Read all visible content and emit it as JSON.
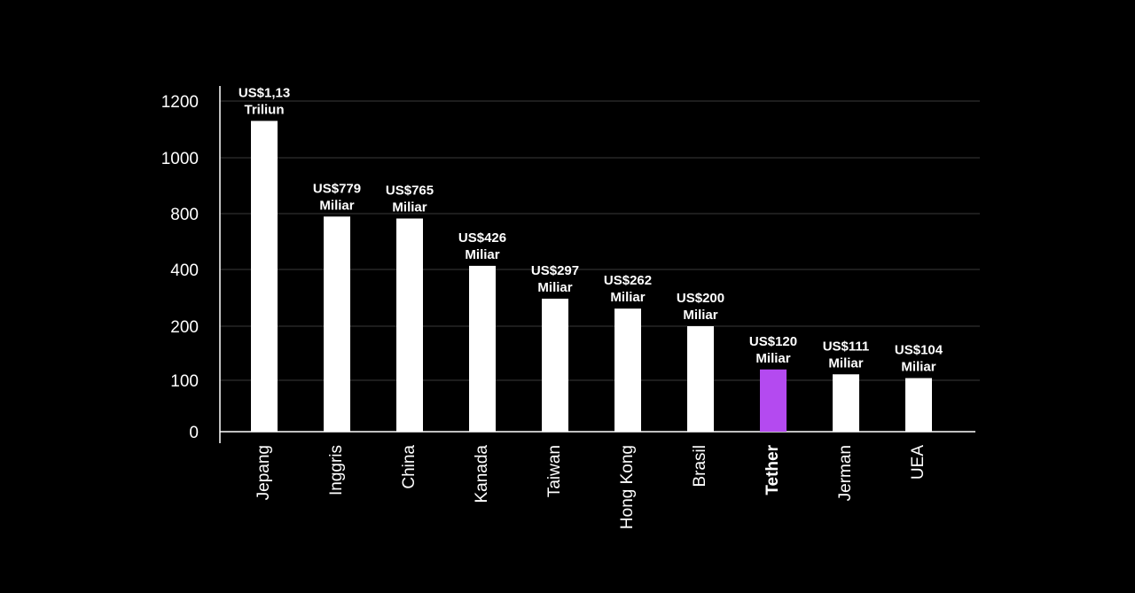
{
  "chart_data": {
    "type": "bar",
    "categories": [
      "Jepang",
      "Inggris",
      "China",
      "Kanada",
      "Taiwan",
      "Hong Kong",
      "Brasil",
      "Tether",
      "Jerman",
      "UEA"
    ],
    "values": [
      1130,
      779,
      765,
      426,
      297,
      262,
      200,
      120,
      111,
      104
    ],
    "data_labels": [
      [
        "US$1,13",
        "Triliun"
      ],
      [
        "US$779",
        "Miliar"
      ],
      [
        "US$765",
        "Miliar"
      ],
      [
        "US$426",
        "Miliar"
      ],
      [
        "US$297",
        "Miliar"
      ],
      [
        "US$262",
        "Miliar"
      ],
      [
        "US$200",
        "Miliar"
      ],
      [
        "US$120",
        "Miliar"
      ],
      [
        "US$111",
        "Miliar"
      ],
      [
        "US$104",
        "Miliar"
      ]
    ],
    "yticks": [
      0,
      100,
      200,
      400,
      800,
      1000,
      1200
    ],
    "highlight_category": "Tether",
    "grid": true,
    "xlabel": "",
    "ylabel": "",
    "colors": {
      "background": "#000000",
      "bar": "#ffffff",
      "highlight": "#b44af0",
      "grid": "#3a3a3a",
      "text": "#ffffff"
    }
  }
}
